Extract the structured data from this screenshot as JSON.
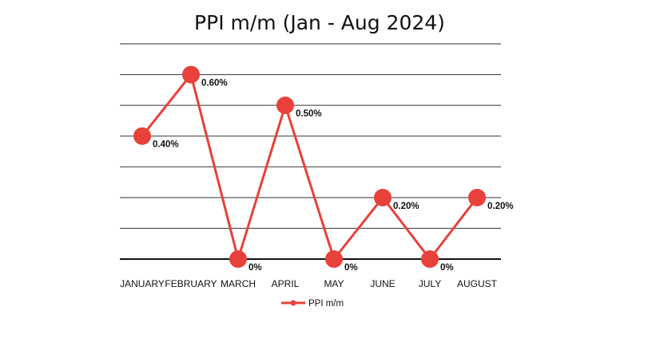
{
  "chart_data": {
    "type": "line",
    "title": "PPI m/m (Jan - Aug 2024)",
    "categories": [
      "JANUARY",
      "FEBRUARY",
      "MARCH",
      "APRIL",
      "MAY",
      "JUNE",
      "JULY",
      "AUGUST"
    ],
    "series": [
      {
        "name": "PPI m/m",
        "values": [
          0.4,
          0.6,
          0.0,
          0.5,
          0.0,
          0.2,
          0.0,
          0.2
        ],
        "labels": [
          "0.40%",
          "0.60%",
          "0%",
          "0.50%",
          "0%",
          "0.20%",
          "0%",
          "0.20%"
        ]
      }
    ],
    "ylim": [
      0,
      0.7
    ],
    "grid": true,
    "y_tick_labels_shown": false,
    "legend_position": "bottom",
    "colors": {
      "line": "#e8403a",
      "grid": "#333333",
      "text": "#111111"
    }
  }
}
